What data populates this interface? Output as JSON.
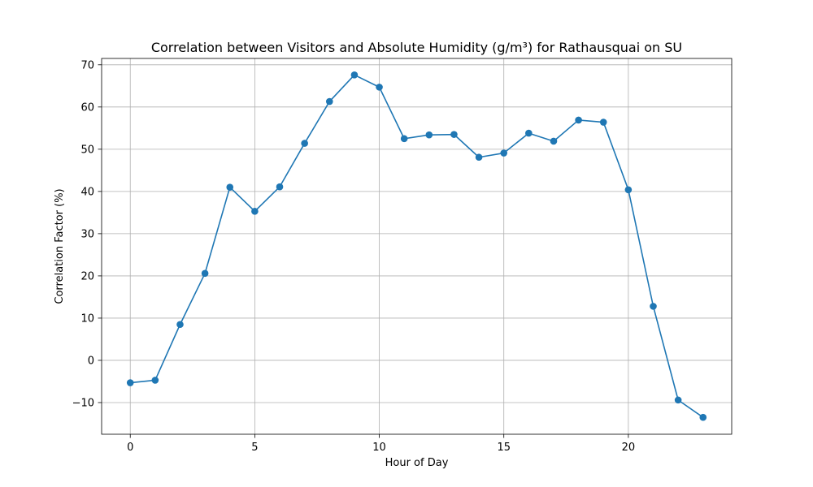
{
  "chart_data": {
    "type": "line",
    "title": "Correlation between Visitors and Absolute Humidity (g/m³) for Rathausquai on SU",
    "xlabel": "Hour of Day",
    "ylabel": "Correlation Factor (%)",
    "x": [
      0,
      1,
      2,
      3,
      4,
      5,
      6,
      7,
      8,
      9,
      10,
      11,
      12,
      13,
      14,
      15,
      16,
      17,
      18,
      19,
      20,
      21,
      22,
      23
    ],
    "series": [
      {
        "values": [
          -5.3,
          -4.7,
          8.5,
          20.6,
          41.0,
          35.3,
          41.1,
          51.4,
          61.3,
          67.6,
          64.7,
          52.5,
          53.4,
          53.5,
          48.1,
          49.1,
          53.8,
          51.9,
          56.9,
          56.4,
          40.4,
          12.8,
          -9.4,
          -13.5
        ],
        "color": "#1f77b4",
        "marker": "circle"
      }
    ],
    "xlim": [
      -1.15,
      24.15
    ],
    "ylim": [
      -17.5,
      71.5
    ],
    "xticks": [
      0,
      5,
      10,
      15,
      20
    ],
    "yticks": [
      -10,
      0,
      10,
      20,
      30,
      40,
      50,
      60,
      70
    ],
    "ytick_labels": [
      "−10",
      "0",
      "10",
      "20",
      "30",
      "40",
      "50",
      "60",
      "70"
    ],
    "grid": true
  }
}
